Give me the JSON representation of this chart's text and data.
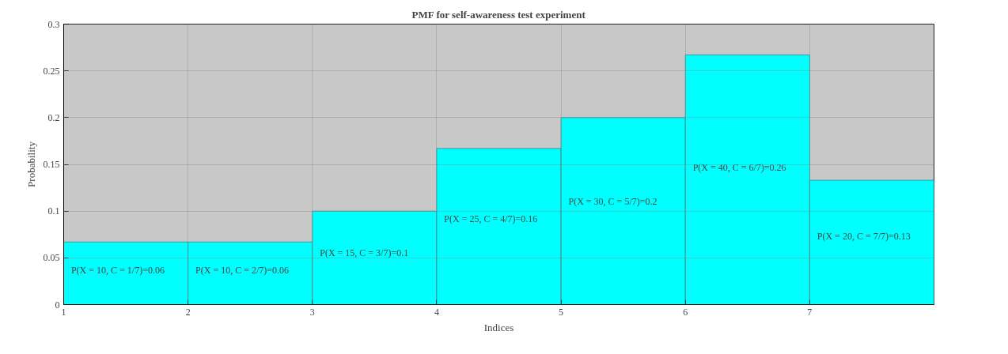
{
  "chart_data": {
    "type": "histogram",
    "title": "PMF for self-awareness test experiment",
    "xlabel": "Indices",
    "ylabel": "Probability",
    "bins": [
      1,
      2,
      3,
      4,
      5,
      6,
      7,
      8
    ],
    "values": [
      0.067,
      0.067,
      0.1,
      0.167,
      0.2,
      0.267,
      0.133
    ],
    "color": "#00ffff",
    "xlim": [
      1,
      8
    ],
    "xticks": [
      1,
      2,
      3,
      4,
      5,
      6,
      7
    ],
    "ylim": [
      0,
      0.3
    ],
    "yticks": [
      0,
      0.05,
      0.1,
      0.15,
      0.2,
      0.25,
      0.3
    ],
    "grid": true,
    "annotations": [
      "P(X = 10, C = 1/7)=0.06",
      "P(X = 10, C = 2/7)=0.06",
      "P(X = 15, C = 3/7)=0.1",
      "P(X = 25, C = 4/7)=0.16",
      "P(X = 30, C = 5/7)=0.2",
      "P(X = 40, C = 6/7)=0.26",
      "P(X = 20, C = 7/7)=0.13"
    ]
  }
}
